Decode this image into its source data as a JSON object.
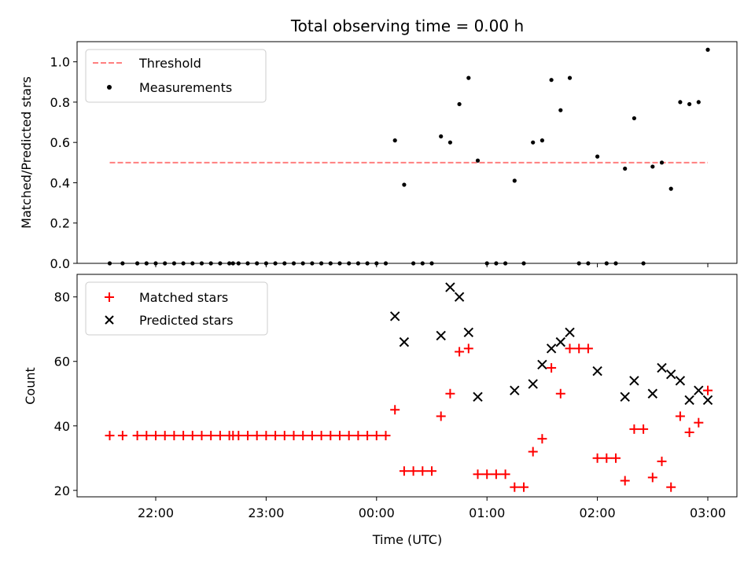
{
  "figure": {
    "title": "Total observing time = 0.00 h"
  },
  "chart_data": [
    {
      "type": "scatter",
      "ylabel": "Matched/Predicted stars",
      "ylim": [
        0,
        1.1
      ],
      "yticks": [
        0.0,
        0.2,
        0.4,
        0.6,
        0.8,
        1.0
      ],
      "ytick_labels": [
        "0.0",
        "0.2",
        "0.4",
        "0.6",
        "0.8",
        "1.0"
      ],
      "xticks": [
        "22:00",
        "23:00",
        "00:00",
        "01:00",
        "02:00",
        "03:00"
      ],
      "xtick_labels_visible": false,
      "legend_position": "top-left",
      "legend": [
        "Threshold",
        "Measurements"
      ],
      "threshold": {
        "name": "Threshold",
        "value": 0.5,
        "x_start": "21:35",
        "x_end": "03:00",
        "color": "#ff7f7f",
        "style": "dashed"
      },
      "series": [
        {
          "name": "Measurements",
          "marker": "dot",
          "color": "#000000",
          "x": [
            "21:35",
            "21:42",
            "21:50",
            "21:55",
            "22:00",
            "22:05",
            "22:10",
            "22:15",
            "22:20",
            "22:25",
            "22:30",
            "22:35",
            "22:40",
            "22:42",
            "22:45",
            "22:50",
            "22:55",
            "23:00",
            "23:05",
            "23:10",
            "23:15",
            "23:20",
            "23:25",
            "23:30",
            "23:35",
            "23:40",
            "23:45",
            "23:50",
            "23:55",
            "00:00",
            "00:05",
            "00:10",
            "00:15",
            "00:20",
            "00:25",
            "00:30",
            "00:35",
            "00:40",
            "00:45",
            "00:50",
            "00:55",
            "01:00",
            "01:05",
            "01:10",
            "01:15",
            "01:20",
            "01:25",
            "01:30",
            "01:35",
            "01:40",
            "01:45",
            "01:50",
            "01:55",
            "02:00",
            "02:05",
            "02:10",
            "02:15",
            "02:20",
            "02:25",
            "02:30",
            "02:35",
            "02:40",
            "02:45",
            "02:50",
            "02:55",
            "03:00"
          ],
          "y": [
            0,
            0,
            0,
            0,
            0,
            0,
            0,
            0,
            0,
            0,
            0,
            0,
            0,
            0,
            0,
            0,
            0,
            0,
            0,
            0,
            0,
            0,
            0,
            0,
            0,
            0,
            0,
            0,
            0,
            0,
            0,
            0.61,
            0.39,
            0,
            0,
            0,
            0.63,
            0.6,
            0.79,
            0.92,
            0.51,
            0,
            0,
            0,
            0.41,
            0,
            0.6,
            0.61,
            0.91,
            0.76,
            0.92,
            0,
            0,
            0.53,
            0,
            0,
            0.47,
            0.72,
            0,
            0.48,
            0.5,
            0.37,
            0.8,
            0.79,
            0.8,
            1.06
          ]
        }
      ]
    },
    {
      "type": "scatter",
      "xlabel": "Time (UTC)",
      "ylabel": "Count",
      "ylim": [
        18,
        87
      ],
      "yticks": [
        20,
        40,
        60,
        80
      ],
      "ytick_labels": [
        "20",
        "40",
        "60",
        "80"
      ],
      "xticks": [
        "22:00",
        "23:00",
        "00:00",
        "01:00",
        "02:00",
        "03:00"
      ],
      "xtick_labels": [
        "22:00",
        "23:00",
        "00:00",
        "01:00",
        "02:00",
        "03:00"
      ],
      "legend_position": "top-left",
      "legend": [
        "Matched stars",
        "Predicted stars"
      ],
      "series": [
        {
          "name": "Matched stars",
          "marker": "plus",
          "color": "#ff0000",
          "x": [
            "21:35",
            "21:42",
            "21:50",
            "21:55",
            "22:00",
            "22:05",
            "22:10",
            "22:15",
            "22:20",
            "22:25",
            "22:30",
            "22:35",
            "22:40",
            "22:42",
            "22:45",
            "22:50",
            "22:55",
            "23:00",
            "23:05",
            "23:10",
            "23:15",
            "23:20",
            "23:25",
            "23:30",
            "23:35",
            "23:40",
            "23:45",
            "23:50",
            "23:55",
            "00:00",
            "00:05",
            "00:10",
            "00:15",
            "00:20",
            "00:25",
            "00:30",
            "00:35",
            "00:40",
            "00:45",
            "00:50",
            "00:55",
            "01:00",
            "01:05",
            "01:10",
            "01:15",
            "01:20",
            "01:25",
            "01:30",
            "01:35",
            "01:40",
            "01:45",
            "01:50",
            "01:55",
            "02:00",
            "02:05",
            "02:10",
            "02:15",
            "02:20",
            "02:25",
            "02:30",
            "02:35",
            "02:40",
            "02:45",
            "02:50",
            "02:55",
            "03:00"
          ],
          "y": [
            37,
            37,
            37,
            37,
            37,
            37,
            37,
            37,
            37,
            37,
            37,
            37,
            37,
            37,
            37,
            37,
            37,
            37,
            37,
            37,
            37,
            37,
            37,
            37,
            37,
            37,
            37,
            37,
            37,
            37,
            37,
            45,
            26,
            26,
            26,
            26,
            43,
            50,
            63,
            64,
            25,
            25,
            25,
            25,
            21,
            21,
            32,
            36,
            58,
            50,
            64,
            64,
            64,
            30,
            30,
            30,
            23,
            39,
            39,
            24,
            29,
            21,
            43,
            38,
            41,
            51
          ]
        },
        {
          "name": "Predicted stars",
          "marker": "x",
          "color": "#000000",
          "x": [
            "00:10",
            "00:15",
            "00:35",
            "00:40",
            "00:45",
            "00:50",
            "00:55",
            "01:15",
            "01:25",
            "01:30",
            "01:35",
            "01:40",
            "01:45",
            "02:00",
            "02:15",
            "02:20",
            "02:30",
            "02:35",
            "02:40",
            "02:45",
            "02:50",
            "02:55",
            "03:00"
          ],
          "y": [
            74,
            66,
            68,
            83,
            80,
            69,
            49,
            51,
            53,
            59,
            64,
            66,
            69,
            57,
            49,
            54,
            50,
            58,
            56,
            54,
            48,
            51,
            48
          ]
        }
      ]
    }
  ]
}
